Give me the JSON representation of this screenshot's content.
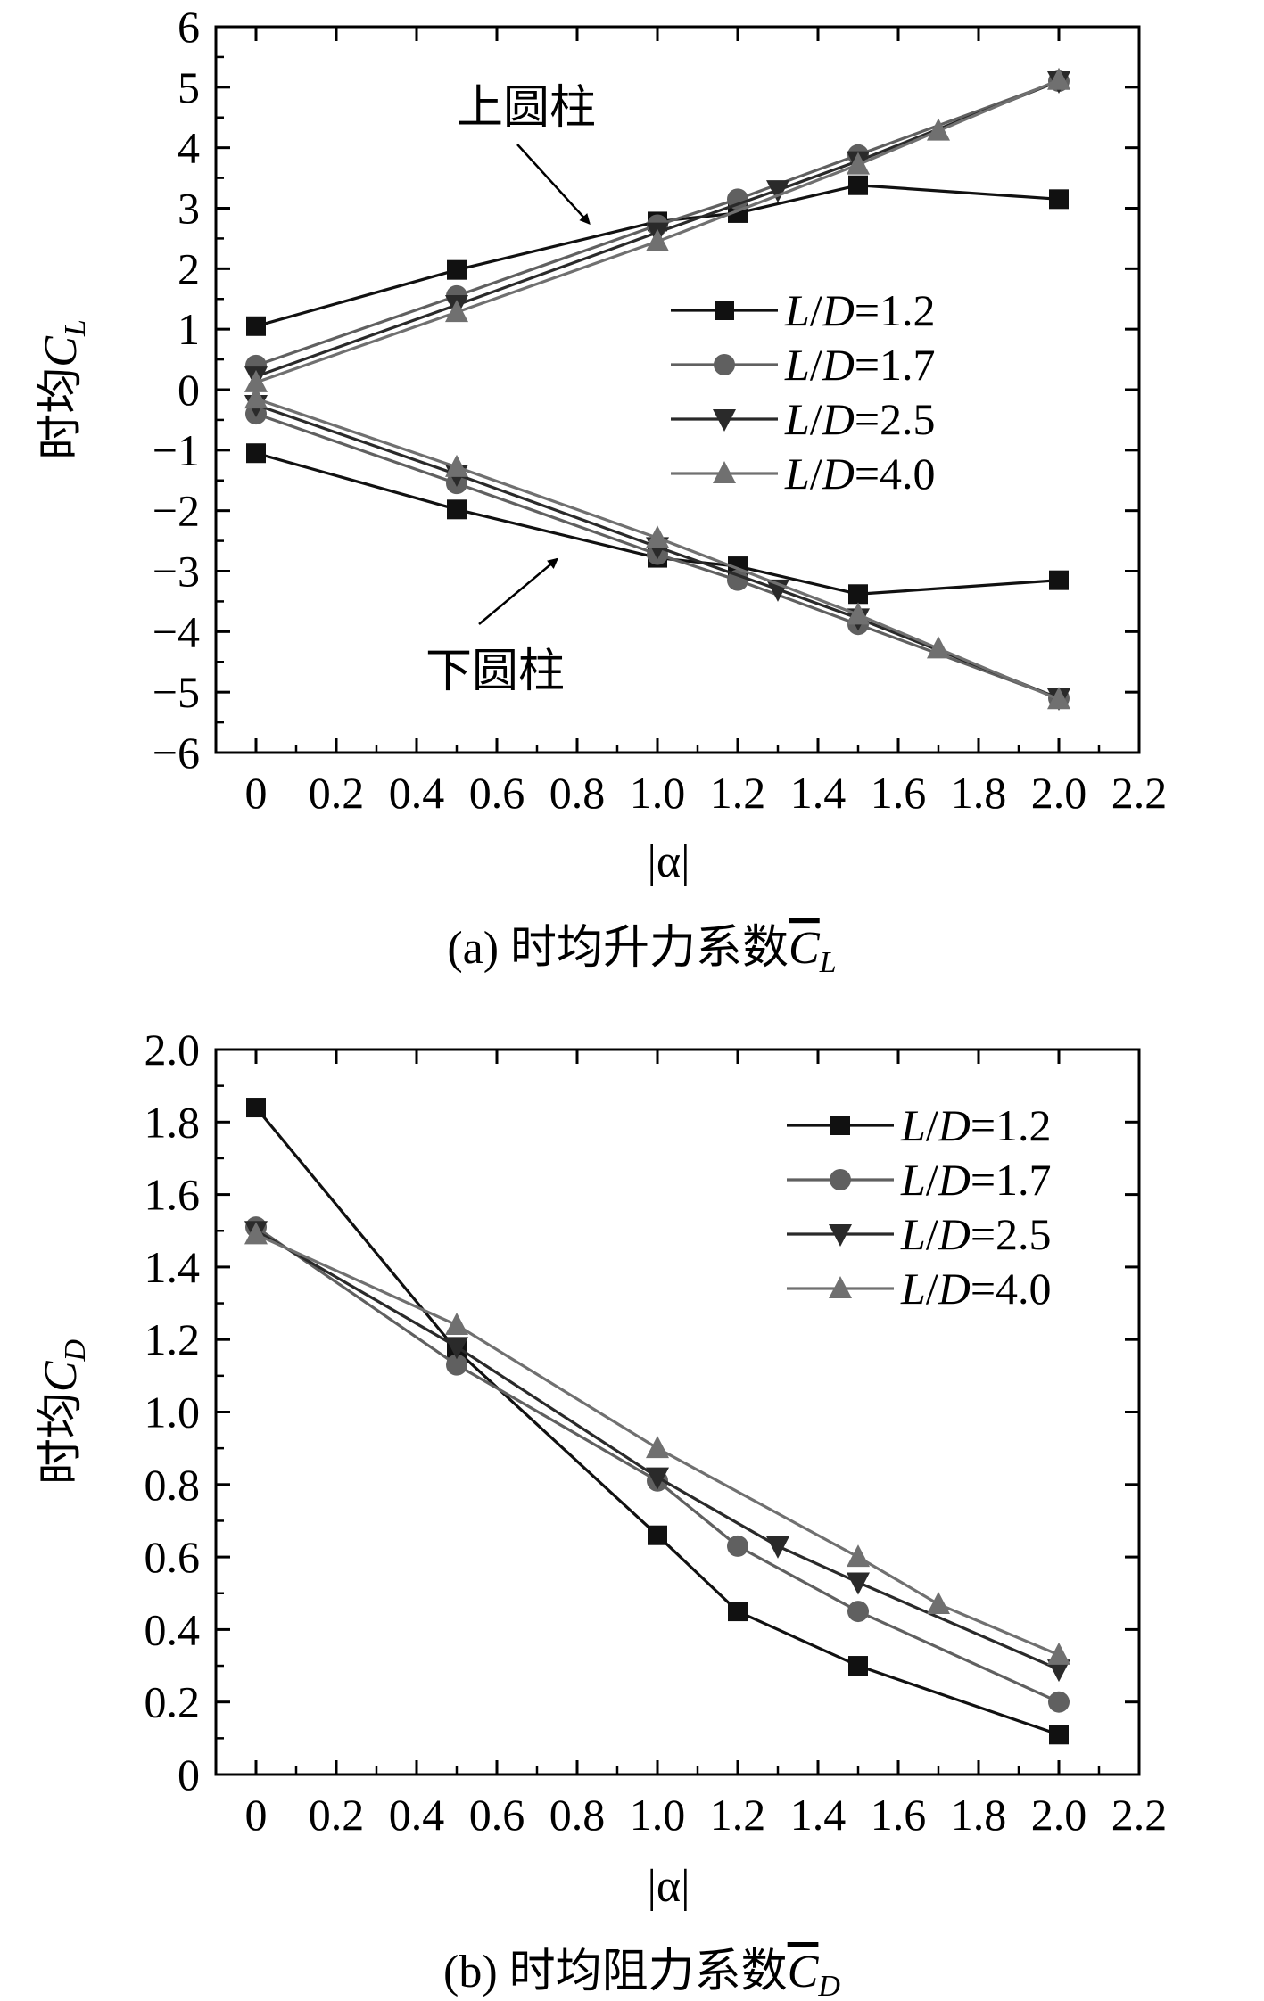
{
  "colors": {
    "series": [
      "#111111",
      "#606060",
      "#2a2a2a",
      "#707070"
    ],
    "axis": "#000000",
    "background": "#ffffff"
  },
  "chart_data": [
    {
      "type": "line",
      "caption": {
        "prefix": "(a) 时均升力系数",
        "sym": "C",
        "sub": "L"
      },
      "xlabel": "|α|",
      "ylabel": {
        "prefix": "时均",
        "sym": "C",
        "sub": "L"
      },
      "xlim": [
        -0.1,
        2.2
      ],
      "ylim": [
        -6,
        6
      ],
      "xticks": [
        0,
        0.2,
        0.4,
        0.6,
        0.8,
        1.0,
        1.2,
        1.4,
        1.6,
        1.8,
        2.0,
        2.2
      ],
      "xtick_labels": [
        "0",
        "0.2",
        "0.4",
        "0.6",
        "0.8",
        "1.0",
        "1.2",
        "1.4",
        "1.6",
        "1.8",
        "2.0",
        "2.2"
      ],
      "yticks": [
        -6,
        -5,
        -4,
        -3,
        -2,
        -1,
        0,
        1,
        2,
        3,
        4,
        5,
        6
      ],
      "ytick_labels": [
        "−6",
        "−5",
        "−4",
        "−3",
        "−2",
        "−1",
        "0",
        "1",
        "2",
        "3",
        "4",
        "5",
        "6"
      ],
      "grid": false,
      "legend_placement": "right",
      "annotations": [
        {
          "text": "上圆柱",
          "points_to": [
            0.83,
            2.75
          ]
        },
        {
          "text": "下圆柱",
          "points_to": [
            0.75,
            -2.8
          ]
        }
      ],
      "series": [
        {
          "name": "L/D=1.2",
          "group": "upper",
          "marker": "square",
          "x": [
            0,
            0.5,
            1.0,
            1.2,
            1.5,
            2.0
          ],
          "y": [
            1.05,
            1.98,
            2.78,
            2.92,
            3.38,
            3.15
          ]
        },
        {
          "name": "L/D=1.7",
          "group": "upper",
          "marker": "circle",
          "x": [
            0,
            0.5,
            1.0,
            1.2,
            1.5,
            2.0
          ],
          "y": [
            0.4,
            1.55,
            2.72,
            3.15,
            3.88,
            5.1
          ]
        },
        {
          "name": "L/D=2.5",
          "group": "upper",
          "marker": "triangle-down",
          "x": [
            0,
            0.5,
            1.0,
            1.3,
            1.5,
            2.0
          ],
          "y": [
            0.22,
            1.4,
            2.6,
            3.3,
            3.78,
            5.1
          ]
        },
        {
          "name": "L/D=4.0",
          "group": "upper",
          "marker": "triangle-up",
          "x": [
            0,
            0.5,
            1.0,
            1.5,
            1.7,
            2.0
          ],
          "y": [
            0.12,
            1.28,
            2.45,
            3.72,
            4.28,
            5.12
          ]
        },
        {
          "name": "L/D=1.2",
          "group": "lower",
          "marker": "square",
          "x": [
            0,
            0.5,
            1.0,
            1.2,
            1.5,
            2.0
          ],
          "y": [
            -1.05,
            -1.98,
            -2.78,
            -2.92,
            -3.38,
            -3.15
          ]
        },
        {
          "name": "L/D=1.7",
          "group": "lower",
          "marker": "circle",
          "x": [
            0,
            0.5,
            1.0,
            1.2,
            1.5,
            2.0
          ],
          "y": [
            -0.4,
            -1.55,
            -2.72,
            -3.15,
            -3.88,
            -5.1
          ]
        },
        {
          "name": "L/D=2.5",
          "group": "lower",
          "marker": "triangle-down",
          "x": [
            0,
            0.5,
            1.0,
            1.3,
            1.5,
            2.0
          ],
          "y": [
            -0.25,
            -1.4,
            -2.6,
            -3.3,
            -3.78,
            -5.1
          ]
        },
        {
          "name": "L/D=4.0",
          "group": "lower",
          "marker": "triangle-up",
          "x": [
            0,
            0.5,
            1.0,
            1.5,
            1.7,
            2.0
          ],
          "y": [
            -0.15,
            -1.28,
            -2.45,
            -3.72,
            -4.28,
            -5.12
          ]
        }
      ],
      "legend": [
        {
          "prefix": "L",
          "mid": "/",
          "sym": "D",
          "value": "=1.2",
          "marker": "square",
          "color_index": 0
        },
        {
          "prefix": "L",
          "mid": "/",
          "sym": "D",
          "value": "=1.7",
          "marker": "circle",
          "color_index": 1
        },
        {
          "prefix": "L",
          "mid": "/",
          "sym": "D",
          "value": "=2.5",
          "marker": "triangle-down",
          "color_index": 2
        },
        {
          "prefix": "L",
          "mid": "/",
          "sym": "D",
          "value": "=4.0",
          "marker": "triangle-up",
          "color_index": 3
        }
      ]
    },
    {
      "type": "line",
      "caption": {
        "prefix": "(b) 时均阻力系数",
        "sym": "C",
        "sub": "D"
      },
      "xlabel": "|α|",
      "ylabel": {
        "prefix": "时均",
        "sym": "C",
        "sub": "D"
      },
      "xlim": [
        -0.1,
        2.2
      ],
      "ylim": [
        0,
        2.0
      ],
      "xticks": [
        0,
        0.2,
        0.4,
        0.6,
        0.8,
        1.0,
        1.2,
        1.4,
        1.6,
        1.8,
        2.0,
        2.2
      ],
      "xtick_labels": [
        "0",
        "0.2",
        "0.4",
        "0.6",
        "0.8",
        "1.0",
        "1.2",
        "1.4",
        "1.6",
        "1.8",
        "2.0",
        "2.2"
      ],
      "yticks": [
        0,
        0.2,
        0.4,
        0.6,
        0.8,
        1.0,
        1.2,
        1.4,
        1.6,
        1.8,
        2.0
      ],
      "ytick_labels": [
        "0",
        "0.2",
        "0.4",
        "0.6",
        "0.8",
        "1.0",
        "1.2",
        "1.4",
        "1.6",
        "1.8",
        "2.0"
      ],
      "grid": false,
      "legend_placement": "top-right",
      "annotations": [],
      "series": [
        {
          "name": "L/D=1.2",
          "marker": "square",
          "x": [
            0,
            0.5,
            1.0,
            1.2,
            1.5,
            2.0
          ],
          "y": [
            1.84,
            1.17,
            0.66,
            0.45,
            0.3,
            0.11
          ]
        },
        {
          "name": "L/D=1.7",
          "marker": "circle",
          "x": [
            0,
            0.5,
            1.0,
            1.2,
            1.5,
            2.0
          ],
          "y": [
            1.51,
            1.13,
            0.81,
            0.63,
            0.45,
            0.2
          ]
        },
        {
          "name": "L/D=2.5",
          "marker": "triangle-down",
          "x": [
            0,
            0.5,
            1.0,
            1.3,
            1.5,
            2.0
          ],
          "y": [
            1.5,
            1.18,
            0.82,
            0.63,
            0.53,
            0.29
          ]
        },
        {
          "name": "L/D=4.0",
          "marker": "triangle-up",
          "x": [
            0,
            0.5,
            1.0,
            1.5,
            1.7,
            2.0
          ],
          "y": [
            1.49,
            1.24,
            0.9,
            0.6,
            0.47,
            0.33
          ]
        }
      ],
      "legend": [
        {
          "prefix": "L",
          "mid": "/",
          "sym": "D",
          "value": "=1.2",
          "marker": "square",
          "color_index": 0
        },
        {
          "prefix": "L",
          "mid": "/",
          "sym": "D",
          "value": "=1.7",
          "marker": "circle",
          "color_index": 1
        },
        {
          "prefix": "L",
          "mid": "/",
          "sym": "D",
          "value": "=2.5",
          "marker": "triangle-down",
          "color_index": 2
        },
        {
          "prefix": "L",
          "mid": "/",
          "sym": "D",
          "value": "=4.0",
          "marker": "triangle-up",
          "color_index": 3
        }
      ]
    }
  ]
}
